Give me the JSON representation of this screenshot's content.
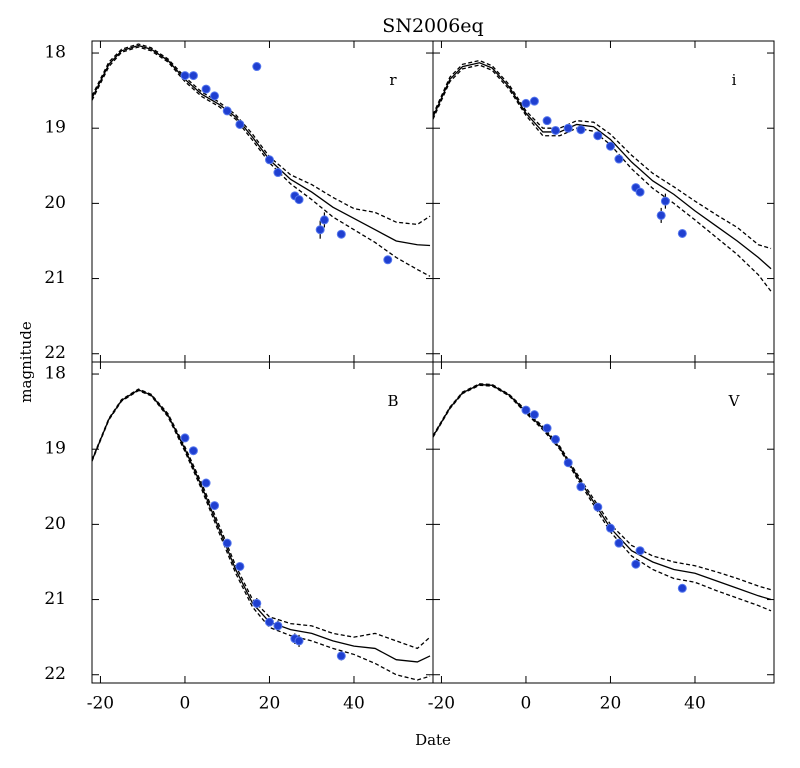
{
  "title": "SN2006eq",
  "xlabel": "Date",
  "ylabel": "magnitude",
  "chart_data": [
    {
      "type": "line",
      "label": "r",
      "xlim": [
        -22,
        58.7
      ],
      "ylim": [
        22.11,
        17.84
      ],
      "xticks": [
        -20,
        0,
        20,
        40
      ],
      "yticks": [
        18,
        19,
        20,
        21,
        22
      ],
      "show_xtick_labels": false,
      "show_ytick_labels": true,
      "x": [
        -22,
        -18,
        -15,
        -11,
        -8,
        -4,
        0,
        4,
        8,
        12,
        16,
        20,
        25,
        30,
        35,
        40,
        45,
        50,
        55,
        58
      ],
      "series": [
        {
          "color": "#000000",
          "style": "solid",
          "values": [
            18.6,
            18.15,
            17.97,
            17.9,
            17.95,
            18.1,
            18.35,
            18.55,
            18.68,
            18.85,
            19.12,
            19.42,
            19.68,
            19.85,
            20.05,
            20.2,
            20.35,
            20.5,
            20.55,
            20.56
          ]
        },
        {
          "color": "#000000",
          "style": "dashed",
          "values": [
            18.57,
            18.12,
            17.95,
            17.88,
            17.93,
            18.08,
            18.32,
            18.52,
            18.65,
            18.82,
            19.08,
            19.38,
            19.62,
            19.75,
            19.92,
            20.07,
            20.12,
            20.25,
            20.28,
            20.17
          ]
        },
        {
          "color": "#000000",
          "style": "dashed",
          "values": [
            18.63,
            18.18,
            17.99,
            17.92,
            17.97,
            18.12,
            18.38,
            18.58,
            18.71,
            18.88,
            19.16,
            19.46,
            19.74,
            19.95,
            20.18,
            20.35,
            20.52,
            20.72,
            20.88,
            20.97
          ]
        }
      ],
      "points": {
        "color": "#1f3fd0",
        "x": [
          0,
          2,
          5,
          7,
          10,
          13,
          17,
          20,
          22,
          26,
          27,
          32,
          33,
          37,
          48
        ],
        "values": [
          18.3,
          18.3,
          18.48,
          18.57,
          18.77,
          18.95,
          18.18,
          19.42,
          19.59,
          19.9,
          19.95,
          20.35,
          20.22,
          20.41,
          20.75
        ],
        "errors": [
          0.03,
          0.03,
          0.03,
          0.03,
          0.03,
          0.03,
          0.03,
          0.03,
          0.03,
          0.03,
          0.03,
          0.12,
          0.1,
          0.03,
          0.03
        ]
      }
    },
    {
      "type": "line",
      "label": "i",
      "xlim": [
        -22,
        58.7
      ],
      "ylim": [
        22.11,
        17.84
      ],
      "xticks": [
        -20,
        0,
        20,
        40
      ],
      "yticks": [
        18,
        19,
        20,
        21,
        22
      ],
      "show_xtick_labels": false,
      "show_ytick_labels": false,
      "x": [
        -22,
        -18,
        -15,
        -11,
        -8,
        -4,
        0,
        4,
        8,
        12,
        16,
        20,
        25,
        30,
        35,
        40,
        45,
        50,
        55,
        58
      ],
      "series": [
        {
          "color": "#000000",
          "style": "solid",
          "values": [
            18.85,
            18.35,
            18.18,
            18.13,
            18.2,
            18.45,
            18.8,
            19.05,
            19.05,
            18.95,
            18.98,
            19.15,
            19.45,
            19.7,
            19.88,
            20.1,
            20.3,
            20.5,
            20.72,
            20.87
          ]
        },
        {
          "color": "#000000",
          "style": "dashed",
          "values": [
            18.82,
            18.32,
            18.15,
            18.1,
            18.17,
            18.42,
            18.77,
            19.0,
            19.0,
            18.9,
            18.92,
            19.08,
            19.36,
            19.6,
            19.78,
            19.97,
            20.15,
            20.32,
            20.55,
            20.6
          ]
        },
        {
          "color": "#000000",
          "style": "dashed",
          "values": [
            18.88,
            18.38,
            18.21,
            18.16,
            18.23,
            18.48,
            18.83,
            19.1,
            19.1,
            19.0,
            19.04,
            19.22,
            19.54,
            19.8,
            20.0,
            20.22,
            20.45,
            20.68,
            20.95,
            21.17
          ]
        }
      ],
      "points": {
        "color": "#1f3fd0",
        "x": [
          0,
          2,
          5,
          7,
          10,
          13,
          17,
          20,
          22,
          26,
          27,
          32,
          33,
          37
        ],
        "values": [
          18.67,
          18.64,
          18.9,
          19.03,
          19.0,
          19.02,
          19.1,
          19.24,
          19.41,
          19.79,
          19.85,
          20.16,
          19.97,
          20.4
        ],
        "errors": [
          0.03,
          0.03,
          0.03,
          0.03,
          0.03,
          0.03,
          0.03,
          0.03,
          0.03,
          0.03,
          0.03,
          0.1,
          0.1,
          0.03
        ]
      }
    },
    {
      "type": "line",
      "label": "B",
      "xlim": [
        -22,
        58.7
      ],
      "ylim": [
        22.11,
        17.84
      ],
      "xticks": [
        -20,
        0,
        20,
        40
      ],
      "yticks": [
        18,
        19,
        20,
        21,
        22
      ],
      "show_xtick_labels": true,
      "show_ytick_labels": true,
      "x": [
        -22,
        -18,
        -15,
        -11,
        -8,
        -4,
        0,
        4,
        8,
        12,
        16,
        20,
        25,
        30,
        35,
        40,
        45,
        50,
        55,
        58
      ],
      "series": [
        {
          "color": "#000000",
          "style": "solid",
          "values": [
            19.15,
            18.6,
            18.35,
            18.21,
            18.28,
            18.55,
            19.0,
            19.5,
            20.05,
            20.6,
            21.05,
            21.3,
            21.4,
            21.45,
            21.55,
            21.62,
            21.65,
            21.8,
            21.83,
            21.75
          ]
        },
        {
          "color": "#000000",
          "style": "dashed",
          "values": [
            19.14,
            18.59,
            18.34,
            18.2,
            18.27,
            18.53,
            18.97,
            19.46,
            20.0,
            20.55,
            21.0,
            21.23,
            21.32,
            21.35,
            21.45,
            21.5,
            21.45,
            21.55,
            21.65,
            21.5
          ]
        },
        {
          "color": "#000000",
          "style": "dashed",
          "values": [
            19.16,
            18.61,
            18.36,
            18.22,
            18.29,
            18.57,
            19.03,
            19.54,
            20.1,
            20.65,
            21.1,
            21.37,
            21.48,
            21.55,
            21.65,
            21.73,
            21.85,
            22.0,
            22.07,
            22.02
          ]
        }
      ],
      "points": {
        "color": "#1f3fd0",
        "x": [
          0,
          2,
          5,
          7,
          10,
          13,
          17,
          20,
          22,
          26,
          27,
          37
        ],
        "values": [
          18.85,
          19.02,
          19.45,
          19.75,
          20.25,
          20.56,
          21.05,
          21.3,
          21.35,
          21.52,
          21.55,
          21.75
        ],
        "errors": [
          0.03,
          0.03,
          0.04,
          0.03,
          0.03,
          0.03,
          0.07,
          0.03,
          0.07,
          0.07,
          0.08,
          0.06
        ]
      }
    },
    {
      "type": "line",
      "label": "V",
      "xlim": [
        -22,
        58.7
      ],
      "ylim": [
        22.11,
        17.84
      ],
      "xticks": [
        -20,
        0,
        20,
        40
      ],
      "yticks": [
        18,
        19,
        20,
        21,
        22
      ],
      "show_xtick_labels": true,
      "show_ytick_labels": false,
      "x": [
        -22,
        -18,
        -15,
        -11,
        -8,
        -4,
        0,
        4,
        8,
        12,
        16,
        20,
        25,
        30,
        35,
        40,
        45,
        50,
        55,
        58
      ],
      "series": [
        {
          "color": "#000000",
          "style": "solid",
          "values": [
            18.83,
            18.45,
            18.25,
            18.14,
            18.15,
            18.28,
            18.5,
            18.72,
            18.98,
            19.35,
            19.7,
            20.05,
            20.35,
            20.5,
            20.6,
            20.65,
            20.75,
            20.85,
            20.95,
            21.0
          ]
        },
        {
          "color": "#000000",
          "style": "dashed",
          "values": [
            18.82,
            18.44,
            18.24,
            18.13,
            18.14,
            18.27,
            18.48,
            18.7,
            18.96,
            19.32,
            19.66,
            20.0,
            20.28,
            20.42,
            20.5,
            20.55,
            20.63,
            20.72,
            20.82,
            20.87
          ]
        },
        {
          "color": "#000000",
          "style": "dashed",
          "values": [
            18.84,
            18.46,
            18.26,
            18.15,
            18.16,
            18.29,
            18.52,
            18.74,
            19.0,
            19.38,
            19.74,
            20.1,
            20.42,
            20.6,
            20.72,
            20.77,
            20.88,
            20.98,
            21.08,
            21.15
          ]
        }
      ],
      "points": {
        "color": "#1f3fd0",
        "x": [
          0,
          2,
          5,
          7,
          10,
          13,
          17,
          20,
          22,
          26,
          27,
          37
        ],
        "values": [
          18.48,
          18.54,
          18.72,
          18.87,
          19.18,
          19.5,
          19.77,
          20.05,
          20.25,
          20.53,
          20.35,
          20.85
        ],
        "errors": [
          0.03,
          0.03,
          0.03,
          0.03,
          0.03,
          0.03,
          0.03,
          0.03,
          0.03,
          0.03,
          0.03,
          0.03
        ]
      }
    }
  ]
}
